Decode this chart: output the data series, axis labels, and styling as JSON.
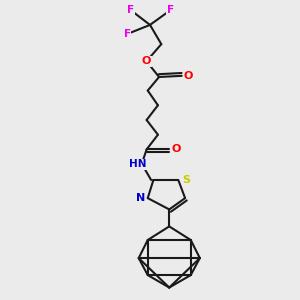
{
  "bg_color": "#ebebeb",
  "atom_colors": {
    "F": "#ee00ee",
    "O": "#ff0000",
    "N": "#0000cc",
    "S": "#cccc00",
    "C": "#000000",
    "H": "#008080"
  },
  "line_color": "#1a1a1a",
  "line_width": 1.5
}
